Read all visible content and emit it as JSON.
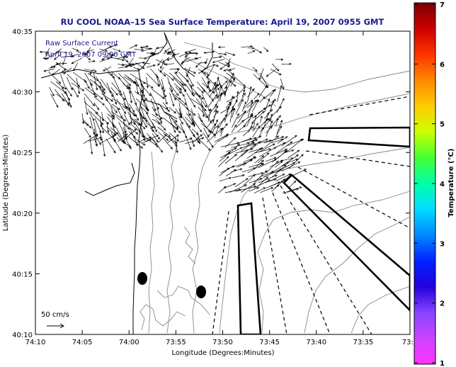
{
  "title": "RU COOL  NOAA–15  Sea Surface Temperature:  April 19, 2007 0955 GMT",
  "legend": {
    "line1": "Raw Surface Current",
    "line2": "April 19, 2007 09:00 GMT"
  },
  "scale_label": "50 cm/s",
  "x_axis": {
    "label": "Longitude (Degrees:Minutes)",
    "ticks": [
      "74:10",
      "74:05",
      "74:00",
      "73:55",
      "73:50",
      "73:45",
      "73:40",
      "73:35",
      "73:3"
    ]
  },
  "y_axis": {
    "label": "Latitude (Degrees:Minutes)",
    "ticks": [
      "40:35",
      "40:30",
      "40:25",
      "40:20",
      "40:15",
      "40:10"
    ]
  },
  "colorbar": {
    "label": "Temperature (°C)",
    "ticks": [
      "7",
      "6",
      "5",
      "4",
      "3",
      "2",
      "1"
    ],
    "colors": [
      "#7a0000",
      "#cc0000",
      "#ff3300",
      "#ff8800",
      "#ffcc00",
      "#ccff00",
      "#44ff33",
      "#00ffaa",
      "#00ddff",
      "#0088ff",
      "#0022ff",
      "#2200dd",
      "#8844ff",
      "#cc44ff",
      "#ff33ff"
    ]
  },
  "colors": {
    "title": "#1a1a8c",
    "land": "#ffffff",
    "contour": "#888888",
    "arrows": "#000000"
  },
  "icons": {
    "current_vectors": "arrow",
    "buoy_markers": "filled-ellipse"
  }
}
